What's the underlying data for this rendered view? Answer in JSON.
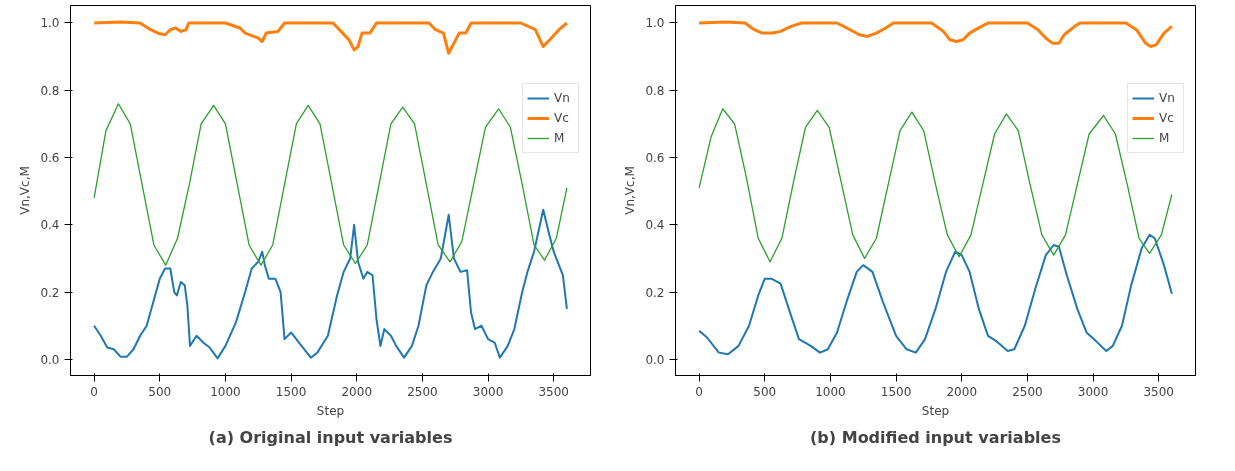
{
  "chart_data": [
    {
      "type": "line",
      "title": "(a) Original input variables",
      "xlabel": "Step",
      "ylabel": "Vn,Vc,M",
      "xlim": [
        -180,
        3780
      ],
      "ylim": [
        -0.048,
        1.052
      ],
      "xticks": [
        0,
        500,
        1000,
        1500,
        2000,
        2500,
        3000,
        3500
      ],
      "yticks": [
        {
          "value": 0,
          "label": "0.0"
        },
        {
          "value": 0.2,
          "label": "0.2"
        },
        {
          "value": 0.4,
          "label": "0.4"
        },
        {
          "value": 0.6,
          "label": "0.6"
        },
        {
          "value": 0.8,
          "label": "0.8"
        },
        {
          "value": 1,
          "label": "1.0"
        }
      ],
      "grid": false,
      "legend": "right",
      "series": [
        {
          "name": "Vn",
          "color": "#1f77b4",
          "x": [
            0,
            50,
            100,
            150,
            200,
            250,
            300,
            350,
            400,
            450,
            500,
            540,
            580,
            610,
            630,
            660,
            690,
            710,
            730,
            780,
            830,
            880,
            940,
            1000,
            1080,
            1150,
            1200,
            1250,
            1280,
            1300,
            1330,
            1380,
            1420,
            1450,
            1500,
            1560,
            1650,
            1700,
            1780,
            1850,
            1900,
            1950,
            1980,
            2010,
            2050,
            2080,
            2120,
            2150,
            2180,
            2210,
            2260,
            2300,
            2360,
            2420,
            2470,
            2530,
            2580,
            2640,
            2700,
            2740,
            2790,
            2840,
            2870,
            2900,
            2950,
            3000,
            3050,
            3090,
            3150,
            3200,
            3260,
            3300,
            3350,
            3420,
            3460,
            3500,
            3570,
            3600
          ],
          "values": [
            0.1,
            0.07,
            0.035,
            0.03,
            0.008,
            0.008,
            0.03,
            0.07,
            0.1,
            0.17,
            0.24,
            0.27,
            0.27,
            0.2,
            0.19,
            0.23,
            0.22,
            0.16,
            0.04,
            0.07,
            0.05,
            0.035,
            0.003,
            0.04,
            0.11,
            0.2,
            0.27,
            0.29,
            0.32,
            0.28,
            0.24,
            0.24,
            0.2,
            0.06,
            0.08,
            0.05,
            0.005,
            0.02,
            0.07,
            0.19,
            0.26,
            0.3,
            0.4,
            0.29,
            0.24,
            0.26,
            0.25,
            0.12,
            0.04,
            0.09,
            0.07,
            0.04,
            0.005,
            0.04,
            0.1,
            0.22,
            0.26,
            0.3,
            0.43,
            0.3,
            0.26,
            0.265,
            0.14,
            0.09,
            0.1,
            0.06,
            0.05,
            0.005,
            0.04,
            0.09,
            0.2,
            0.26,
            0.32,
            0.445,
            0.38,
            0.32,
            0.25,
            0.15
          ]
        },
        {
          "name": "Vc",
          "color": "#ff7f0e",
          "x": [
            0,
            200,
            350,
            430,
            500,
            540,
            580,
            620,
            660,
            700,
            720,
            1000,
            1110,
            1150,
            1250,
            1280,
            1310,
            1400,
            1450,
            1820,
            1880,
            1940,
            1980,
            2010,
            2040,
            2100,
            2150,
            2550,
            2600,
            2660,
            2700,
            2740,
            2780,
            2830,
            2870,
            3250,
            3360,
            3420,
            3470,
            3540,
            3600
          ],
          "values": [
            1.0,
            1.003,
            1.0,
            0.98,
            0.968,
            0.965,
            0.98,
            0.985,
            0.975,
            0.98,
            1.0,
            1.0,
            0.985,
            0.97,
            0.955,
            0.945,
            0.97,
            0.975,
            1.0,
            1.0,
            0.975,
            0.95,
            0.92,
            0.93,
            0.97,
            0.97,
            1.0,
            1.0,
            0.98,
            0.97,
            0.91,
            0.94,
            0.97,
            0.97,
            1.0,
            1.0,
            0.98,
            0.93,
            0.95,
            0.98,
            1.0
          ]
        },
        {
          "name": "M",
          "color": "#2ca02c",
          "x": [
            0,
            90,
            185,
            275,
            365,
            455,
            545,
            635,
            725,
            815,
            910,
            1000,
            1090,
            1180,
            1270,
            1360,
            1450,
            1540,
            1630,
            1720,
            1810,
            1900,
            1990,
            2080,
            2170,
            2260,
            2350,
            2440,
            2530,
            2620,
            2710,
            2800,
            2890,
            2980,
            3080,
            3170,
            3260,
            3350,
            3430,
            3520,
            3600
          ],
          "values": [
            0.48,
            0.68,
            0.76,
            0.7,
            0.52,
            0.34,
            0.28,
            0.36,
            0.52,
            0.7,
            0.755,
            0.7,
            0.52,
            0.34,
            0.28,
            0.34,
            0.52,
            0.7,
            0.755,
            0.7,
            0.52,
            0.34,
            0.285,
            0.34,
            0.52,
            0.7,
            0.75,
            0.7,
            0.52,
            0.34,
            0.29,
            0.35,
            0.52,
            0.69,
            0.745,
            0.69,
            0.52,
            0.34,
            0.295,
            0.36,
            0.51
          ]
        }
      ]
    },
    {
      "type": "line",
      "title": "(b) Modified input variables",
      "xlabel": "Step",
      "ylabel": "Vn,Vc,M",
      "xlim": [
        -180,
        3780
      ],
      "ylim": [
        -0.048,
        1.052
      ],
      "xticks": [
        0,
        500,
        1000,
        1500,
        2000,
        2500,
        3000,
        3500
      ],
      "yticks": [
        {
          "value": 0,
          "label": "0.0"
        },
        {
          "value": 0.2,
          "label": "0.2"
        },
        {
          "value": 0.4,
          "label": "0.4"
        },
        {
          "value": 0.6,
          "label": "0.6"
        },
        {
          "value": 0.8,
          "label": "0.8"
        },
        {
          "value": 1,
          "label": "1.0"
        }
      ],
      "grid": false,
      "legend": "right",
      "series": [
        {
          "name": "Vn",
          "color": "#1f77b4",
          "x": [
            0,
            60,
            150,
            220,
            300,
            380,
            450,
            500,
            550,
            620,
            700,
            760,
            850,
            920,
            980,
            1050,
            1130,
            1200,
            1250,
            1320,
            1400,
            1500,
            1580,
            1650,
            1720,
            1800,
            1880,
            1950,
            2000,
            2060,
            2130,
            2200,
            2260,
            2350,
            2400,
            2480,
            2560,
            2640,
            2700,
            2740,
            2800,
            2880,
            2950,
            3020,
            3100,
            3150,
            3220,
            3290,
            3370,
            3430,
            3470,
            3540,
            3600
          ],
          "values": [
            0.085,
            0.065,
            0.02,
            0.015,
            0.04,
            0.1,
            0.19,
            0.24,
            0.24,
            0.225,
            0.13,
            0.06,
            0.04,
            0.02,
            0.03,
            0.08,
            0.18,
            0.26,
            0.28,
            0.26,
            0.17,
            0.07,
            0.03,
            0.02,
            0.06,
            0.15,
            0.26,
            0.32,
            0.31,
            0.26,
            0.15,
            0.07,
            0.055,
            0.025,
            0.03,
            0.1,
            0.21,
            0.31,
            0.34,
            0.335,
            0.25,
            0.15,
            0.08,
            0.055,
            0.025,
            0.04,
            0.1,
            0.22,
            0.33,
            0.37,
            0.36,
            0.28,
            0.195
          ]
        },
        {
          "name": "Vc",
          "color": "#ff7f0e",
          "x": [
            0,
            200,
            350,
            420,
            480,
            560,
            620,
            700,
            780,
            1050,
            1150,
            1220,
            1280,
            1350,
            1420,
            1480,
            1770,
            1860,
            1910,
            1960,
            2010,
            2060,
            2150,
            2200,
            2500,
            2580,
            2640,
            2690,
            2740,
            2780,
            2860,
            2900,
            3250,
            3330,
            3400,
            3440,
            3480,
            3540,
            3600
          ],
          "values": [
            1.0,
            1.003,
            1.0,
            0.98,
            0.97,
            0.97,
            0.975,
            0.99,
            1.0,
            1.0,
            0.98,
            0.965,
            0.96,
            0.97,
            0.985,
            1.0,
            1.0,
            0.975,
            0.95,
            0.945,
            0.95,
            0.97,
            0.99,
            1.0,
            1.0,
            0.98,
            0.955,
            0.94,
            0.94,
            0.965,
            0.99,
            1.0,
            1.0,
            0.98,
            0.94,
            0.93,
            0.935,
            0.97,
            0.99
          ]
        },
        {
          "name": "M",
          "color": "#2ca02c",
          "x": [
            0,
            90,
            180,
            270,
            360,
            450,
            540,
            630,
            720,
            810,
            900,
            990,
            1080,
            1170,
            1260,
            1350,
            1440,
            1530,
            1620,
            1710,
            1800,
            1890,
            1980,
            2070,
            2160,
            2250,
            2340,
            2430,
            2520,
            2610,
            2700,
            2790,
            2880,
            2970,
            3080,
            3170,
            3260,
            3350,
            3430,
            3520,
            3600
          ],
          "values": [
            0.51,
            0.66,
            0.745,
            0.7,
            0.54,
            0.36,
            0.29,
            0.36,
            0.53,
            0.69,
            0.74,
            0.69,
            0.53,
            0.37,
            0.3,
            0.36,
            0.52,
            0.68,
            0.735,
            0.68,
            0.52,
            0.37,
            0.305,
            0.37,
            0.52,
            0.67,
            0.73,
            0.68,
            0.52,
            0.37,
            0.31,
            0.37,
            0.52,
            0.67,
            0.725,
            0.67,
            0.52,
            0.36,
            0.315,
            0.37,
            0.49
          ]
        }
      ]
    }
  ]
}
